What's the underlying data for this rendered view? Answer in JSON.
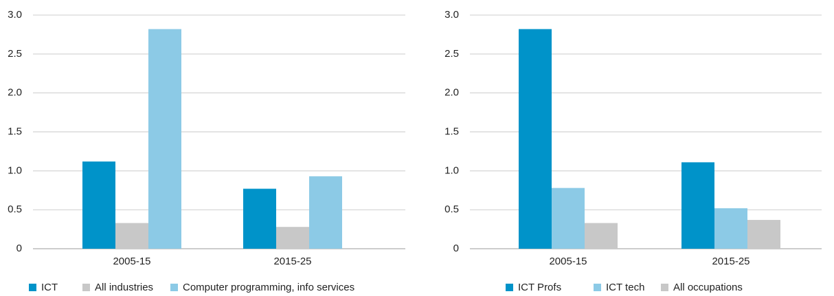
{
  "chart_data": [
    {
      "type": "bar",
      "categories": [
        "2005-15",
        "2015-25"
      ],
      "series": [
        {
          "name": "ICT",
          "color": "#0093c9",
          "values": [
            1.12,
            0.77
          ]
        },
        {
          "name": "All industries",
          "color": "#c8c8c8",
          "values": [
            0.33,
            0.28
          ]
        },
        {
          "name": "Computer programming, info services",
          "color": "#8ccae6",
          "values": [
            2.82,
            0.93
          ]
        }
      ],
      "ylim": [
        0,
        3
      ],
      "yticks": [
        0,
        0.5,
        {
          "value": 1,
          "label": "1.0"
        },
        1.5,
        {
          "value": 2,
          "label": "2.0"
        },
        2.5,
        {
          "value": 3,
          "label": "3.0"
        }
      ],
      "grid": true,
      "legend": "bottom"
    },
    {
      "type": "bar",
      "categories": [
        "2005-15",
        "2015-25"
      ],
      "series": [
        {
          "name": "ICT Profs",
          "color": "#0093c9",
          "values": [
            2.82,
            1.11
          ]
        },
        {
          "name": "ICT tech",
          "color": "#8ccae6",
          "values": [
            0.78,
            0.52
          ]
        },
        {
          "name": "All occupations",
          "color": "#c8c8c8",
          "values": [
            0.33,
            0.37
          ]
        }
      ],
      "ylim": [
        0,
        3
      ],
      "yticks": [
        0,
        0.5,
        {
          "value": 1,
          "label": "1.0"
        },
        1.5,
        {
          "value": 2,
          "label": "2.0"
        },
        2.5,
        {
          "value": 3,
          "label": "3.0"
        }
      ],
      "grid": true,
      "legend": "bottom"
    }
  ]
}
